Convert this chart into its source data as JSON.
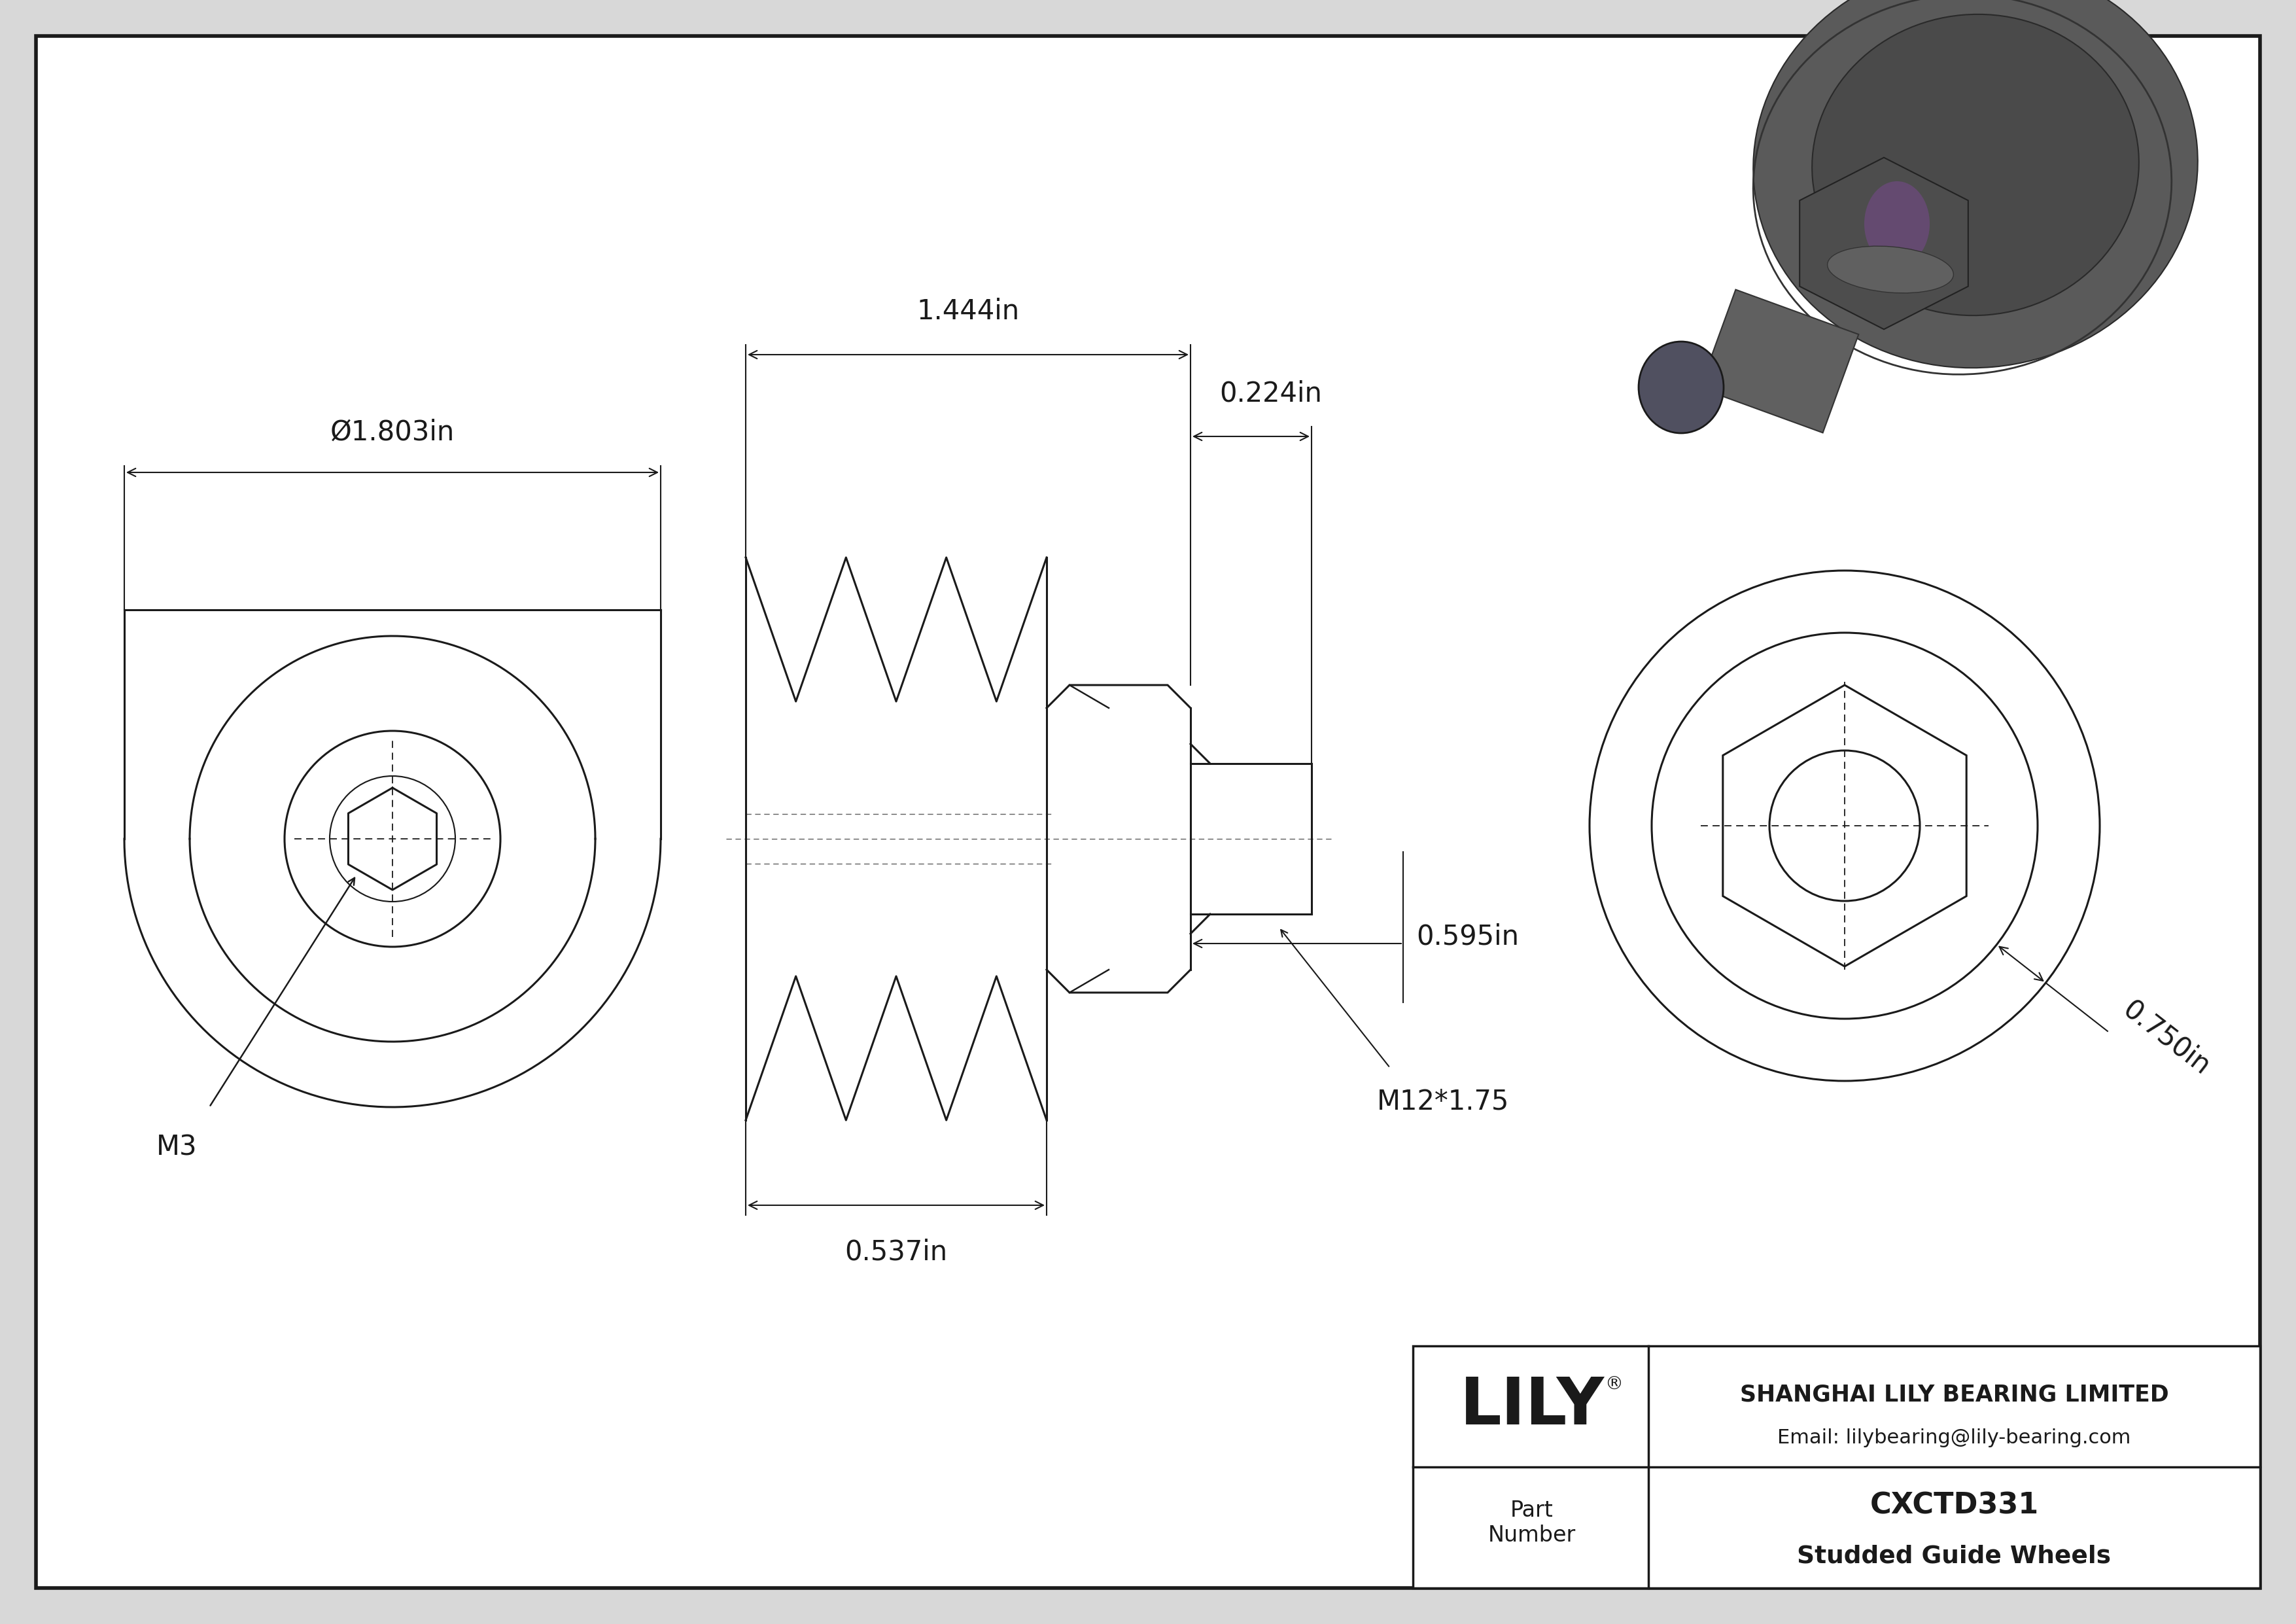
{
  "bg_color": "#d8d8d8",
  "line_color": "#1a1a1a",
  "dim_color": "#1a1a1a",
  "company": "SHANGHAI LILY BEARING LIMITED",
  "email": "Email: lilybearing@lily-bearing.com",
  "part_number": "CXCTD331",
  "part_desc": "Studded Guide Wheels",
  "part_label": "Part\nNumber",
  "lily_text": "LILY",
  "dim_diam": "Ø1.803in",
  "dim_len": "1.444in",
  "dim_stub": "0.224in",
  "dim_hex": "0.595in",
  "dim_body": "0.537in",
  "dim_thread": "M12*1.75",
  "dim_m3": "M3",
  "dim_thickness": "0.750in",
  "lw_main": 2.2,
  "lw_dim": 1.5,
  "lw_border": 4.0,
  "lw_inner": 3.0
}
